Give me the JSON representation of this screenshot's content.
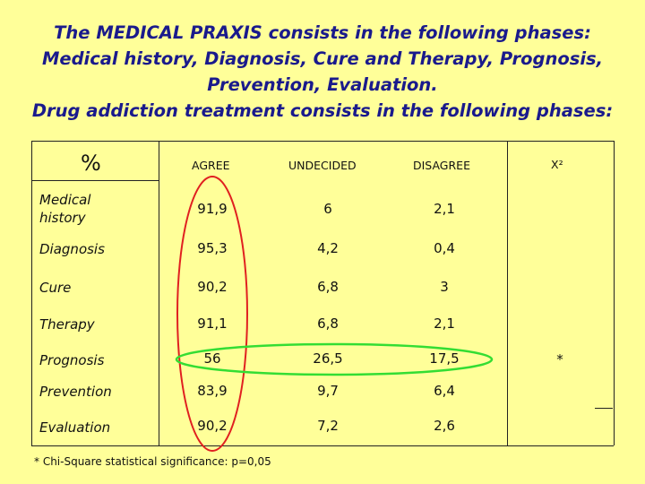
{
  "title_lines": [
    "The MEDICAL PRAXIS consists in the following phases:",
    "Medical history, Diagnosis, Cure  and Therapy, Prognosis,",
    "Prevention, Evaluation.",
    "Drug addiction treatment consists in the following phases:"
  ],
  "table": {
    "header": {
      "corner": "%",
      "agree": "AGREE",
      "undecided": "UNDECIDED",
      "disagree": "DISAGREE",
      "chi": "X²"
    },
    "rows": [
      {
        "label_lines": [
          "Medical",
          "history"
        ],
        "agree": "91,9",
        "undecided": "6",
        "disagree": "2,1",
        "chi": ""
      },
      {
        "label_lines": [
          "Diagnosis"
        ],
        "agree": "95,3",
        "undecided": "4,2",
        "disagree": "0,4",
        "chi": ""
      },
      {
        "label_lines": [
          "Cure"
        ],
        "agree": "90,2",
        "undecided": "6,8",
        "disagree": "3",
        "chi": ""
      },
      {
        "label_lines": [
          "Therapy"
        ],
        "agree": "91,1",
        "undecided": "6,8",
        "disagree": "2,1",
        "chi": ""
      },
      {
        "label_lines": [
          "Prognosis"
        ],
        "agree": "56",
        "undecided": "26,5",
        "disagree": "17,5",
        "chi": "*"
      },
      {
        "label_lines": [
          "Prevention"
        ],
        "agree": "83,9",
        "undecided": "9,7",
        "disagree": "6,4",
        "chi": ""
      },
      {
        "label_lines": [
          "Evaluation"
        ],
        "agree": "90,2",
        "undecided": "7,2",
        "disagree": "2,6",
        "chi": ""
      }
    ]
  },
  "footnote": "* Chi-Square statistical significance: p=0,05",
  "highlights": {
    "agree_column_ellipse_color": "#e02020",
    "prognosis_row_ellipse_color": "#33dd33"
  }
}
